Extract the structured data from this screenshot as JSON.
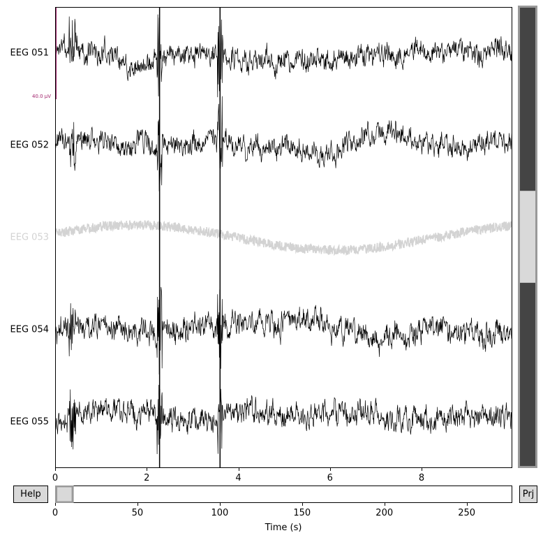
{
  "channels": [
    {
      "name": "EEG 051",
      "bad": false,
      "seed": 11,
      "amp": 1.0
    },
    {
      "name": "EEG 052",
      "bad": false,
      "seed": 23,
      "amp": 1.0
    },
    {
      "name": "EEG 053",
      "bad": true,
      "seed": 37,
      "amp": 0.35
    },
    {
      "name": "EEG 054",
      "bad": false,
      "seed": 41,
      "amp": 1.1
    },
    {
      "name": "EEG 055",
      "bad": false,
      "seed": 59,
      "amp": 1.1
    }
  ],
  "time_axis": {
    "ticks": [
      "0",
      "2",
      "4",
      "6",
      "8"
    ],
    "tick_values": [
      0,
      2,
      4,
      6,
      8
    ],
    "xlim": [
      0,
      9.98
    ]
  },
  "event_lines": [
    2.28,
    3.6
  ],
  "scalebar": {
    "label": "40.0 µV",
    "color": "#a0206a"
  },
  "overview": {
    "ticks": [
      "0",
      "50",
      "100",
      "150",
      "200",
      "250"
    ],
    "tick_values": [
      0,
      50,
      100,
      150,
      200,
      250
    ],
    "xlim": [
      0,
      277.7
    ],
    "window_start": 0,
    "window_end": 10,
    "xlabel": "Time (s)"
  },
  "vscroll": {
    "total_channels": 5,
    "view_start": 2,
    "view_end": 3
  },
  "buttons": {
    "help": "Help",
    "proj": "Prj"
  },
  "colors": {
    "signal": "#000000",
    "bad": "#d3d3d3",
    "scrollbar_dark": "#444444",
    "scrollbar_light": "#d9d9d9"
  }
}
